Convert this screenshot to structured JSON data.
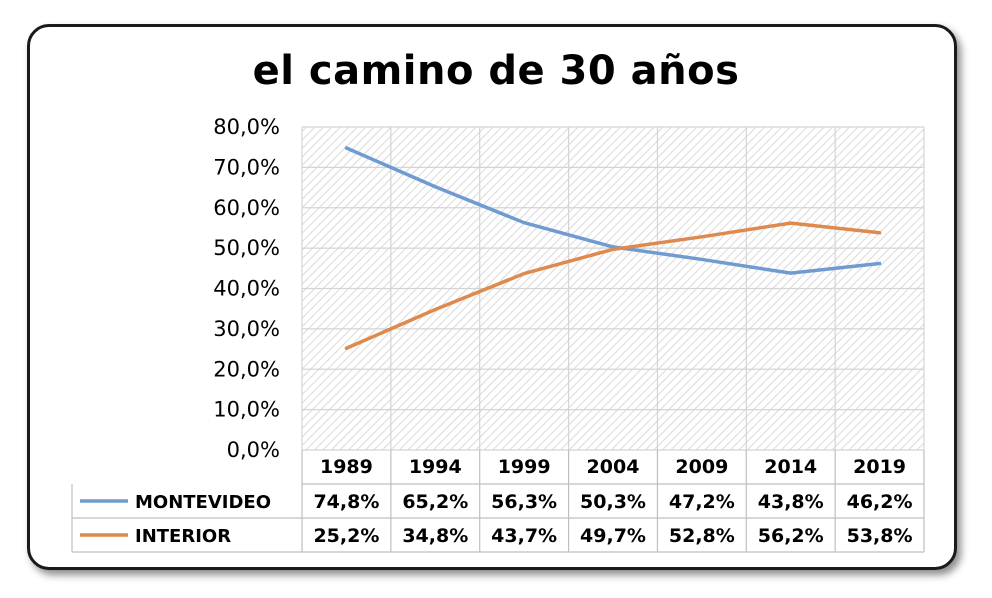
{
  "chart_data": {
    "type": "line",
    "title": "el camino de 30 años",
    "categories": [
      "1989",
      "1994",
      "1999",
      "2004",
      "2009",
      "2014",
      "2019"
    ],
    "ylim": [
      0,
      80
    ],
    "yticks": [
      "0,0%",
      "10,0%",
      "20,0%",
      "30,0%",
      "40,0%",
      "50,0%",
      "60,0%",
      "70,0%",
      "80,0%"
    ],
    "grid": true,
    "legend": "data-table",
    "series": [
      {
        "name": "MONTEVIDEO",
        "color": "#6f9bd1",
        "values": [
          74.8,
          65.2,
          56.3,
          50.3,
          47.2,
          43.8,
          46.2
        ],
        "labels": [
          "74,8%",
          "65,2%",
          "56,3%",
          "50,3%",
          "47,2%",
          "43,8%",
          "46,2%"
        ]
      },
      {
        "name": "INTERIOR",
        "color": "#de8a4e",
        "values": [
          25.2,
          34.8,
          43.7,
          49.7,
          52.8,
          56.2,
          53.8
        ],
        "labels": [
          "25,2%",
          "34,8%",
          "43,7%",
          "49,7%",
          "52,8%",
          "56,2%",
          "53,8%"
        ]
      }
    ]
  }
}
